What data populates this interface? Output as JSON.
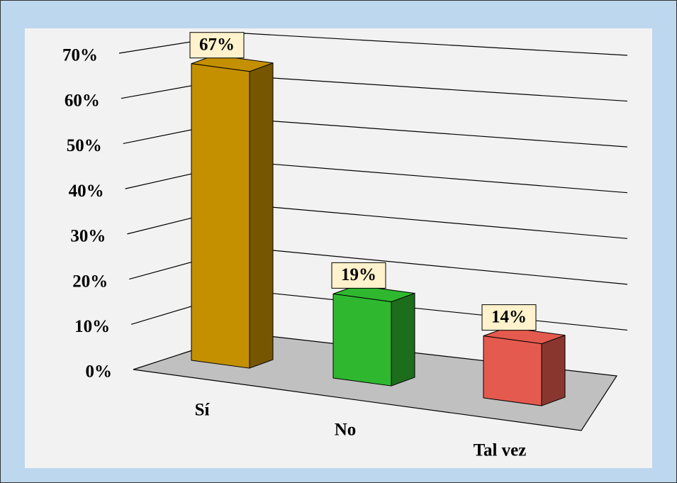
{
  "chart_data": {
    "type": "bar3d",
    "categories": [
      "Sí",
      "No",
      "Tal vez"
    ],
    "values": [
      67,
      19,
      14
    ],
    "value_labels": [
      "67%",
      "19%",
      "14%"
    ],
    "colors": [
      "#c49000",
      "#2fb82f",
      "#e55a4e"
    ],
    "ylim": [
      0,
      70
    ],
    "yticks": [
      {
        "value": 0,
        "label": "0%"
      },
      {
        "value": 10,
        "label": "10%"
      },
      {
        "value": 20,
        "label": "20%"
      },
      {
        "value": 30,
        "label": "30%"
      },
      {
        "value": 40,
        "label": "40%"
      },
      {
        "value": 50,
        "label": "50%"
      },
      {
        "value": 60,
        "label": "60%"
      },
      {
        "value": 70,
        "label": "70%"
      }
    ],
    "grid": true
  }
}
